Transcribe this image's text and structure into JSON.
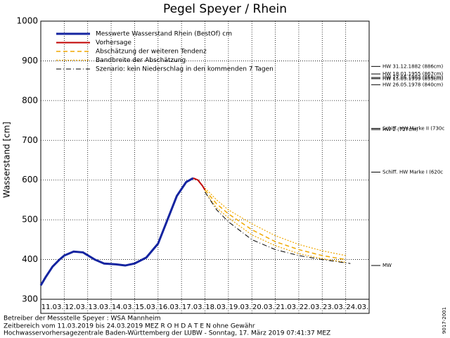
{
  "chart_data": {
    "type": "line",
    "title": "Pegel Speyer / Rhein",
    "ylabel": "Wasserstand [cm]",
    "categories": [
      "11.03.",
      "12.03.",
      "13.03.",
      "14.03.",
      "15.03.",
      "16.03.",
      "17.03.",
      "18.03.",
      "19.03.",
      "20.03.",
      "21.03.",
      "22.03.",
      "23.03.",
      "24.03."
    ],
    "xlim": [
      0,
      14
    ],
    "ylim": [
      300,
      1000
    ],
    "yticks": [
      300,
      400,
      500,
      600,
      700,
      800,
      900,
      1000
    ],
    "grid": true,
    "series": [
      {
        "name": "Messwerte Wasserstand Rhein (BestOf)   cm",
        "color": "#1424a0",
        "style": "solid",
        "width": 3,
        "x": [
          0,
          0.2,
          0.5,
          0.8,
          1.0,
          1.4,
          1.8,
          2.3,
          2.7,
          3.2,
          3.6,
          4.0,
          4.5,
          5.0,
          5.4,
          5.8,
          6.2,
          6.5
        ],
        "values": [
          335,
          355,
          382,
          400,
          410,
          420,
          418,
          400,
          390,
          388,
          385,
          390,
          405,
          440,
          500,
          560,
          595,
          605
        ]
      },
      {
        "name": "Vorhersage",
        "color": "#c00000",
        "style": "solid",
        "width": 2,
        "x": [
          6.5,
          6.7,
          6.9,
          7.0
        ],
        "values": [
          605,
          600,
          585,
          575
        ]
      },
      {
        "name": "Abschätzung der weiteren Tendenz",
        "color": "#f0a800",
        "style": "dashed",
        "width": 1.5,
        "x": [
          7.0,
          7.5,
          8,
          9,
          10,
          11,
          12,
          13
        ],
        "values": [
          575,
          540,
          515,
          475,
          445,
          425,
          410,
          400
        ]
      },
      {
        "name": "Bandbreite der Abschätzung",
        "color": "#f0a800",
        "style": "dotted",
        "width": 1.2,
        "x": [
          7.0,
          7.5,
          8,
          9,
          10,
          11,
          12,
          13
        ],
        "values": [
          570,
          530,
          505,
          462,
          435,
          415,
          402,
          393
        ],
        "upper": [
          580,
          550,
          525,
          490,
          460,
          438,
          422,
          410
        ]
      },
      {
        "name": "Szenario: kein Niederschlag in den kommenden 7 Tagen",
        "color": "#000000",
        "style": "dashdot",
        "width": 1,
        "x": [
          7.0,
          7.5,
          8,
          9,
          10,
          11,
          12,
          13.2
        ],
        "values": [
          570,
          525,
          495,
          450,
          425,
          410,
          400,
          390
        ]
      }
    ],
    "annotations": [
      {
        "label": "HW 31.12.1882 (886cm)",
        "value": 886
      },
      {
        "label": "HW 18.01.1955 (867cm)",
        "value": 867
      },
      {
        "label": "HW 27.05.1983 (858cm)",
        "value": 858
      },
      {
        "label": "HW 15.05.1999 (855cm)",
        "value": 855
      },
      {
        "label": "HW 26.05.1978 (840cm)",
        "value": 840
      },
      {
        "label": "Schiff. HW Marke II (730c",
        "value": 730
      },
      {
        "label": "HW 2 (727cm)",
        "value": 727
      },
      {
        "label": "Schiff. HW Marke I (620c",
        "value": 620
      },
      {
        "label": "MW",
        "value": 385
      }
    ],
    "footer": [
      "Betreiber der Messstelle Speyer : WSA Mannheim",
      "Zeitbereich vom 11.03.2019 bis 24.03.2019    MEZ    R O H D A T E N  ohne Gewähr",
      "Hochwasservorhersagezentrale Baden-Württemberg der LUBW - Sonntag, 17. März 2019 07:41:37 MEZ"
    ],
    "side_note": "9017-2001"
  }
}
